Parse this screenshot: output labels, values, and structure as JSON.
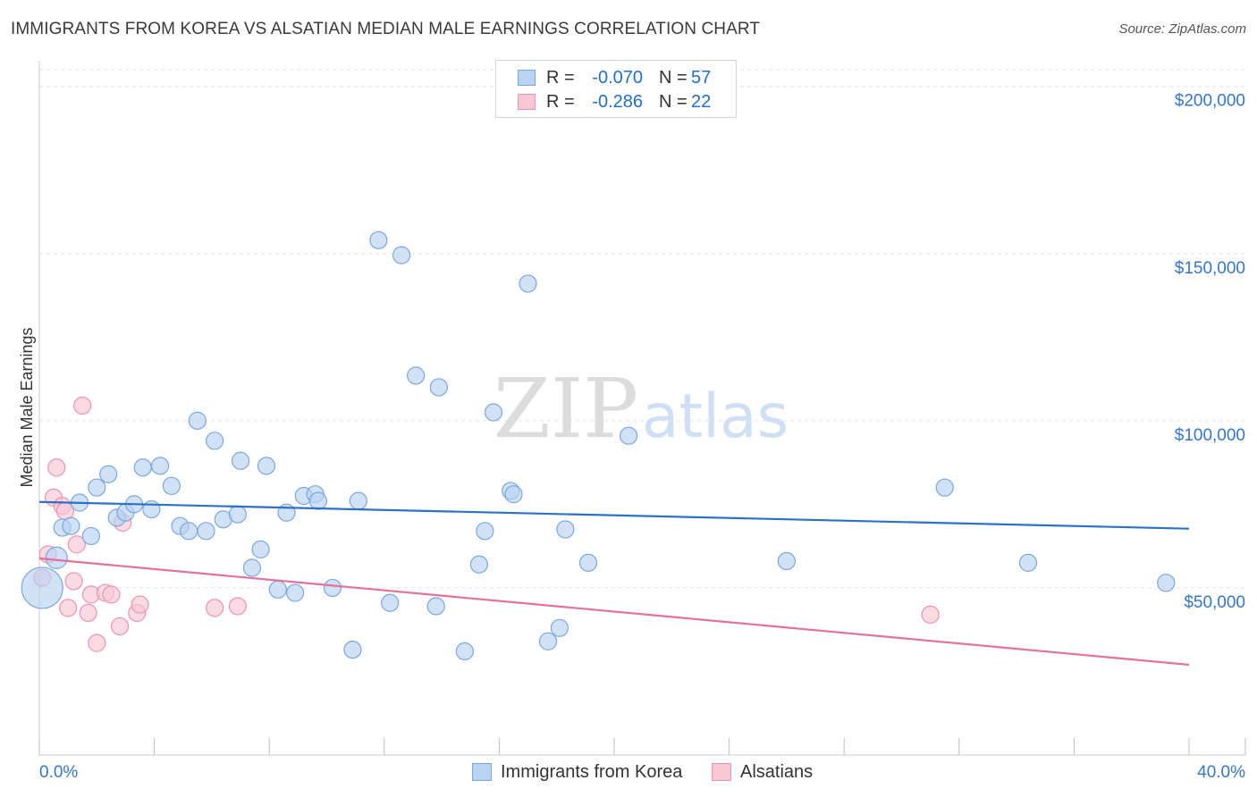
{
  "title": "IMMIGRANTS FROM KOREA VS ALSATIAN MEDIAN MALE EARNINGS CORRELATION CHART",
  "source": "Source: ZipAtlas.com",
  "watermark": {
    "zip": "ZIP",
    "atlas": "atlas"
  },
  "legend": {
    "series": [
      {
        "r_label": "R =",
        "r_value": "-0.070",
        "n_label": "N =",
        "n_value": "57"
      },
      {
        "r_label": "R =",
        "r_value": "-0.286",
        "n_label": "N =",
        "n_value": "22"
      }
    ]
  },
  "colors": {
    "korea_fill": "#b9d3f2",
    "korea_stroke": "#7aa7dd",
    "korea_line": "#2a72c9",
    "alsatian_fill": "#f8c7d6",
    "alsatian_stroke": "#ec93b1",
    "alsatian_line": "#e4709b",
    "tick_text": "#3476c9",
    "grid": "#e3e3e3"
  },
  "chart_data": {
    "type": "scatter",
    "title": "IMMIGRANTS FROM KOREA VS ALSATIAN MEDIAN MALE EARNINGS CORRELATION CHART",
    "xlabel": "",
    "ylabel": "Median Male Earnings",
    "xlim": [
      0,
      40
    ],
    "ylim": [
      0,
      205000
    ],
    "x_tick_labels": [
      "0.0%",
      "40.0%"
    ],
    "y_ticks": [
      50000,
      100000,
      150000,
      200000
    ],
    "y_tick_labels": [
      "$50,000",
      "$100,000",
      "$150,000",
      "$200,000"
    ],
    "grid": true,
    "series": [
      {
        "name": "Immigrants from Korea",
        "r": -0.07,
        "n": 57,
        "trend": {
          "x": [
            0,
            40
          ],
          "y": [
            75700,
            67700
          ]
        },
        "points": [
          {
            "x": 0.1,
            "y": 50000,
            "big": true
          },
          {
            "x": 0.6,
            "y": 59000,
            "mid": true
          },
          {
            "x": 0.8,
            "y": 68000
          },
          {
            "x": 1.1,
            "y": 68500
          },
          {
            "x": 1.4,
            "y": 75500
          },
          {
            "x": 1.8,
            "y": 65500
          },
          {
            "x": 2.0,
            "y": 80000
          },
          {
            "x": 2.4,
            "y": 84000
          },
          {
            "x": 2.7,
            "y": 71000
          },
          {
            "x": 3.0,
            "y": 72500
          },
          {
            "x": 3.3,
            "y": 75000
          },
          {
            "x": 3.6,
            "y": 86000
          },
          {
            "x": 3.9,
            "y": 73500
          },
          {
            "x": 4.2,
            "y": 86500
          },
          {
            "x": 4.6,
            "y": 80500
          },
          {
            "x": 4.9,
            "y": 68500
          },
          {
            "x": 5.2,
            "y": 67000
          },
          {
            "x": 5.5,
            "y": 100000
          },
          {
            "x": 5.8,
            "y": 67000
          },
          {
            "x": 6.1,
            "y": 94000
          },
          {
            "x": 6.4,
            "y": 70500
          },
          {
            "x": 6.9,
            "y": 72000
          },
          {
            "x": 7.0,
            "y": 88000
          },
          {
            "x": 7.4,
            "y": 56000
          },
          {
            "x": 7.7,
            "y": 61500
          },
          {
            "x": 7.9,
            "y": 86500
          },
          {
            "x": 8.3,
            "y": 49500
          },
          {
            "x": 8.6,
            "y": 72500
          },
          {
            "x": 8.9,
            "y": 48500
          },
          {
            "x": 9.2,
            "y": 77500
          },
          {
            "x": 9.6,
            "y": 78000
          },
          {
            "x": 9.7,
            "y": 76000
          },
          {
            "x": 10.2,
            "y": 50000
          },
          {
            "x": 10.9,
            "y": 31500
          },
          {
            "x": 11.1,
            "y": 76000
          },
          {
            "x": 11.8,
            "y": 154000
          },
          {
            "x": 12.2,
            "y": 45500
          },
          {
            "x": 12.6,
            "y": 149500
          },
          {
            "x": 13.1,
            "y": 113500
          },
          {
            "x": 13.8,
            "y": 44500
          },
          {
            "x": 13.9,
            "y": 110000
          },
          {
            "x": 14.8,
            "y": 31000
          },
          {
            "x": 15.3,
            "y": 57000
          },
          {
            "x": 15.5,
            "y": 67000
          },
          {
            "x": 15.8,
            "y": 102500
          },
          {
            "x": 16.4,
            "y": 79000
          },
          {
            "x": 16.5,
            "y": 78000
          },
          {
            "x": 17.0,
            "y": 141000
          },
          {
            "x": 17.7,
            "y": 34000
          },
          {
            "x": 18.1,
            "y": 38000
          },
          {
            "x": 18.3,
            "y": 67500
          },
          {
            "x": 19.1,
            "y": 57500
          },
          {
            "x": 20.5,
            "y": 95500
          },
          {
            "x": 26.0,
            "y": 58000
          },
          {
            "x": 31.5,
            "y": 80000
          },
          {
            "x": 34.4,
            "y": 57500
          },
          {
            "x": 39.2,
            "y": 51500
          }
        ]
      },
      {
        "name": "Alsatians",
        "r": -0.286,
        "n": 22,
        "trend": {
          "x": [
            0,
            40
          ],
          "y": [
            58800,
            27000
          ]
        },
        "points": [
          {
            "x": 0.1,
            "y": 53000
          },
          {
            "x": 0.3,
            "y": 60000
          },
          {
            "x": 0.5,
            "y": 77000
          },
          {
            "x": 0.6,
            "y": 86000
          },
          {
            "x": 0.8,
            "y": 74500
          },
          {
            "x": 0.9,
            "y": 73000
          },
          {
            "x": 1.0,
            "y": 44000
          },
          {
            "x": 1.2,
            "y": 52000
          },
          {
            "x": 1.3,
            "y": 63000
          },
          {
            "x": 1.5,
            "y": 104500
          },
          {
            "x": 1.7,
            "y": 42500
          },
          {
            "x": 1.8,
            "y": 48000
          },
          {
            "x": 2.0,
            "y": 33500
          },
          {
            "x": 2.3,
            "y": 48500
          },
          {
            "x": 2.5,
            "y": 48000
          },
          {
            "x": 2.8,
            "y": 38500
          },
          {
            "x": 2.9,
            "y": 69500
          },
          {
            "x": 3.4,
            "y": 42500
          },
          {
            "x": 3.5,
            "y": 45000
          },
          {
            "x": 6.1,
            "y": 44000
          },
          {
            "x": 6.9,
            "y": 44500
          },
          {
            "x": 31.0,
            "y": 42000
          }
        ]
      }
    ]
  },
  "bottom_legend": [
    {
      "label": "Immigrants from Korea"
    },
    {
      "label": "Alsatians"
    }
  ]
}
